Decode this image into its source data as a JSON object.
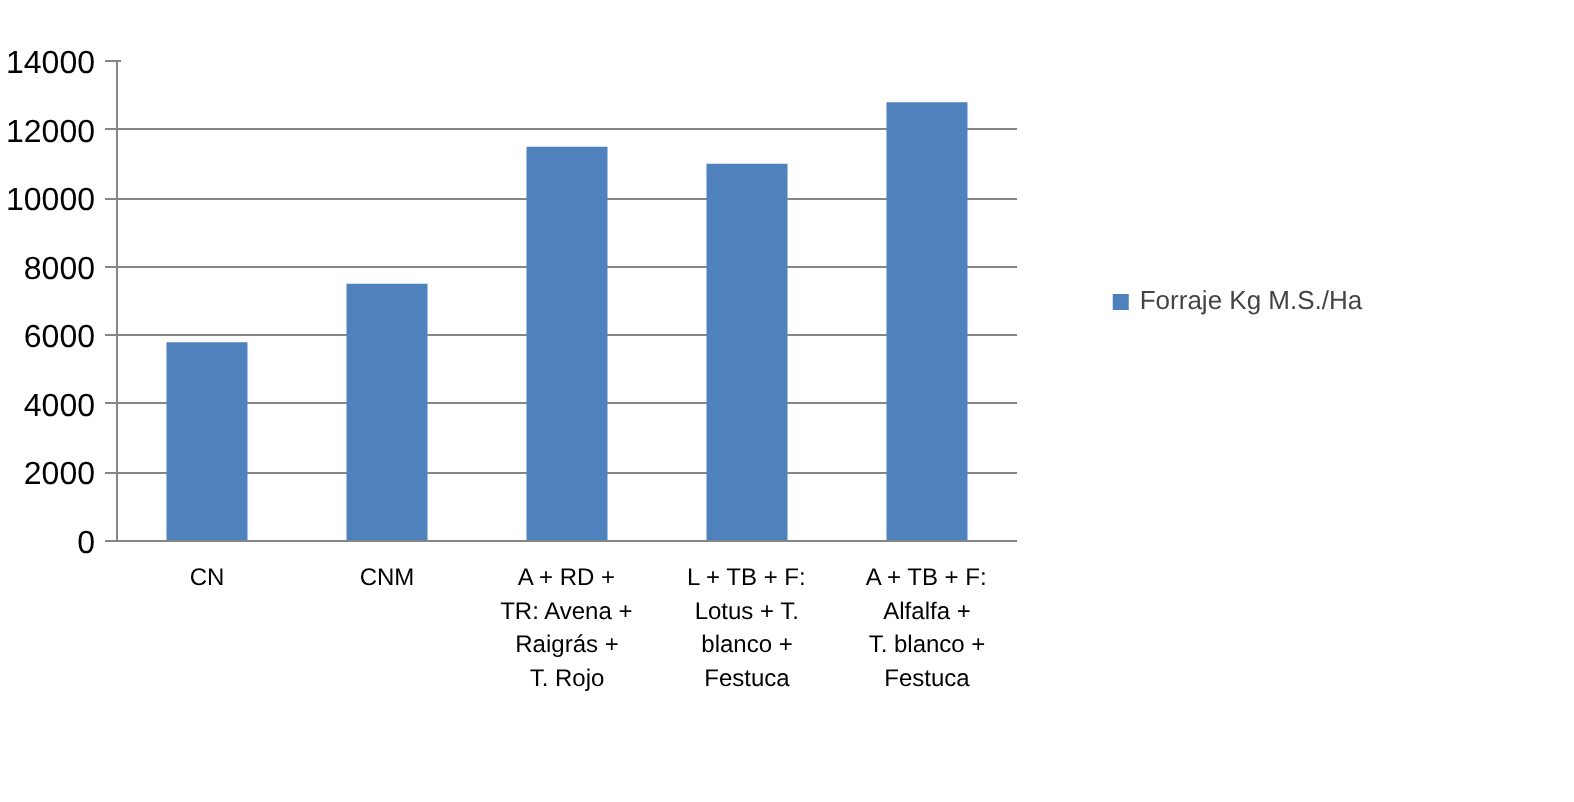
{
  "chart_data": {
    "type": "bar",
    "categories": [
      "CN",
      "CNM",
      "A + RD + TR: Avena + Raigrás + T. Rojo",
      "L + TB + F: Lotus + T. blanco + Festuca",
      "A + TB + F: Alfalfa + T. blanco + Festuca"
    ],
    "series": [
      {
        "name": "Forraje Kg M.S./Ha",
        "color": "#4f81bd",
        "values": [
          5800,
          7500,
          11500,
          11000,
          12800
        ]
      }
    ],
    "ylim": [
      0,
      14000
    ],
    "yticks": [
      0,
      2000,
      4000,
      6000,
      8000,
      10000,
      12000,
      14000
    ],
    "grid": "y",
    "legend": "right"
  }
}
